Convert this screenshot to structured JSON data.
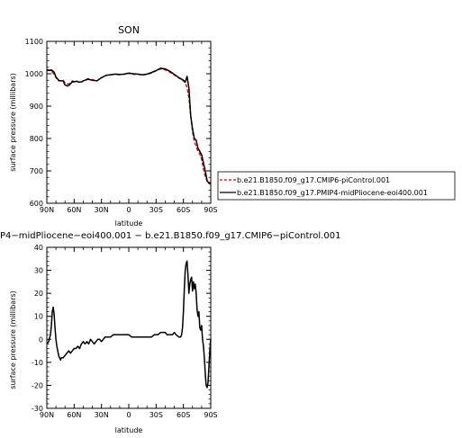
{
  "chart_data": [
    {
      "type": "line",
      "title": "SON",
      "xlabel": "latitude",
      "ylabel": "surface pressure (millibars)",
      "xlim": [
        90,
        -90
      ],
      "ylim": [
        600,
        1100
      ],
      "xticks": [
        90,
        60,
        30,
        0,
        -30,
        -60,
        -90
      ],
      "xtick_labels": [
        "90N",
        "60N",
        "30N",
        "0",
        "30S",
        "60S",
        "90S"
      ],
      "yticks": [
        600,
        700,
        800,
        900,
        1000,
        1100
      ],
      "grid": false,
      "legend_position": "right",
      "series": [
        {
          "name": "b.e21.B1850.f09_g17.CMIP6-piControl.001",
          "color": "#e00000",
          "dash": "dashed",
          "x": [
            90,
            87,
            85,
            82,
            80,
            77,
            75,
            72,
            70,
            67,
            65,
            62,
            60,
            57,
            55,
            52,
            50,
            45,
            40,
            35,
            30,
            27,
            25,
            20,
            15,
            10,
            5,
            0,
            -5,
            -10,
            -15,
            -20,
            -25,
            -30,
            -35,
            -40,
            -45,
            -50,
            -55,
            -60,
            -62,
            -64,
            -66,
            -68,
            -70,
            -72,
            -74,
            -76,
            -78,
            -80,
            -82,
            -84,
            -86,
            -88,
            -90
          ],
          "y": [
            1012,
            1012,
            1008,
            998,
            988,
            978,
            978,
            980,
            972,
            968,
            970,
            978,
            976,
            976,
            975,
            973,
            978,
            985,
            982,
            978,
            987,
            992,
            995,
            997,
            998,
            997,
            998,
            1001,
            998,
            998,
            996,
            998,
            1002,
            1009,
            1015,
            1012,
            1005,
            996,
            987,
            978,
            972,
            958,
            925,
            870,
            820,
            790,
            775,
            760,
            752,
            735,
            705,
            682,
            668,
            665,
            665
          ]
        },
        {
          "name": "b.e21.B1850.f09_g17.PMIP4-midPliocene-eoi400.001",
          "color": "#000000",
          "dash": "solid",
          "x": [
            90,
            87,
            85,
            82,
            80,
            77,
            75,
            72,
            70,
            67,
            65,
            62,
            60,
            57,
            55,
            52,
            50,
            45,
            40,
            35,
            30,
            27,
            25,
            20,
            15,
            10,
            5,
            0,
            -5,
            -10,
            -15,
            -20,
            -25,
            -30,
            -35,
            -40,
            -45,
            -50,
            -55,
            -60,
            -62,
            -64,
            -66,
            -68,
            -70,
            -72,
            -74,
            -76,
            -78,
            -80,
            -82,
            -84,
            -86,
            -88,
            -90
          ],
          "y": [
            1010,
            1010,
            1012,
            1005,
            990,
            980,
            978,
            978,
            965,
            962,
            966,
            975,
            975,
            977,
            974,
            975,
            978,
            983,
            980,
            978,
            988,
            992,
            995,
            997,
            999,
            998,
            999,
            1002,
            1000,
            999,
            997,
            999,
            1004,
            1010,
            1017,
            1015,
            1008,
            998,
            988,
            980,
            974,
            992,
            957,
            870,
            830,
            800,
            795,
            770,
            760,
            750,
            725,
            700,
            670,
            662,
            660
          ]
        }
      ]
    },
    {
      "type": "line",
      "title": "P4−midPliocene−eoi400.001  −  b.e21.B1850.f09_g17.CMIP6−piControl.001",
      "xlabel": "latitude",
      "ylabel": "surface pressure (millibars)",
      "xlim": [
        90,
        -90
      ],
      "ylim": [
        -30,
        40
      ],
      "xticks": [
        90,
        60,
        30,
        0,
        -30,
        -60,
        -90
      ],
      "xtick_labels": [
        "90N",
        "60N",
        "30N",
        "0",
        "30S",
        "60S",
        "90S"
      ],
      "yticks": [
        -30,
        -20,
        -10,
        0,
        10,
        20,
        30,
        40
      ],
      "grid": false,
      "series": [
        {
          "color": "#000000",
          "dash": "solid",
          "x": [
            90,
            88,
            86,
            85,
            84,
            83,
            82,
            81,
            80,
            79,
            78,
            77,
            76,
            75,
            74,
            72,
            70,
            68,
            66,
            64,
            62,
            60,
            58,
            56,
            54,
            52,
            50,
            48,
            46,
            44,
            42,
            40,
            38,
            36,
            34,
            32,
            30,
            28,
            26,
            24,
            22,
            20,
            17,
            15,
            12,
            10,
            8,
            5,
            3,
            0,
            -3,
            -5,
            -8,
            -10,
            -12,
            -15,
            -18,
            -20,
            -22,
            -25,
            -28,
            -30,
            -32,
            -35,
            -38,
            -40,
            -42,
            -45,
            -48,
            -50,
            -52,
            -55,
            -57,
            -58,
            -59,
            -60,
            -61,
            -62,
            -63,
            -64,
            -65,
            -66,
            -67,
            -68,
            -69,
            -70,
            -71,
            -72,
            -73,
            -74,
            -75,
            -76,
            -77,
            -78,
            -79,
            -80,
            -81,
            -82,
            -83,
            -84,
            -85,
            -86,
            -87,
            -88,
            -89,
            -90
          ],
          "y": [
            -2,
            -1,
            2,
            6,
            12,
            14,
            11,
            5,
            0,
            -3,
            -5,
            -7,
            -8,
            -9,
            -8,
            -8,
            -7,
            -6,
            -5,
            -6,
            -5,
            -4,
            -4,
            -3,
            -4,
            -2,
            -1,
            -2,
            -1,
            -2,
            0,
            -1,
            -2,
            -1,
            0,
            0,
            -1,
            0,
            1,
            1,
            1,
            1,
            2,
            2,
            2,
            2,
            2,
            2,
            2,
            2,
            1,
            1,
            1,
            1,
            1,
            1,
            1,
            1,
            1,
            1,
            2,
            2,
            2,
            3,
            3,
            3,
            2,
            2,
            2,
            3,
            2,
            1,
            1,
            2,
            5,
            12,
            22,
            30,
            33,
            34,
            28,
            20,
            24,
            26,
            27,
            21,
            25,
            22,
            24,
            20,
            13,
            10,
            12,
            5,
            4,
            6,
            0,
            -3,
            -8,
            -15,
            -20,
            -21,
            -19,
            -12,
            -5,
            0
          ]
        }
      ]
    }
  ]
}
